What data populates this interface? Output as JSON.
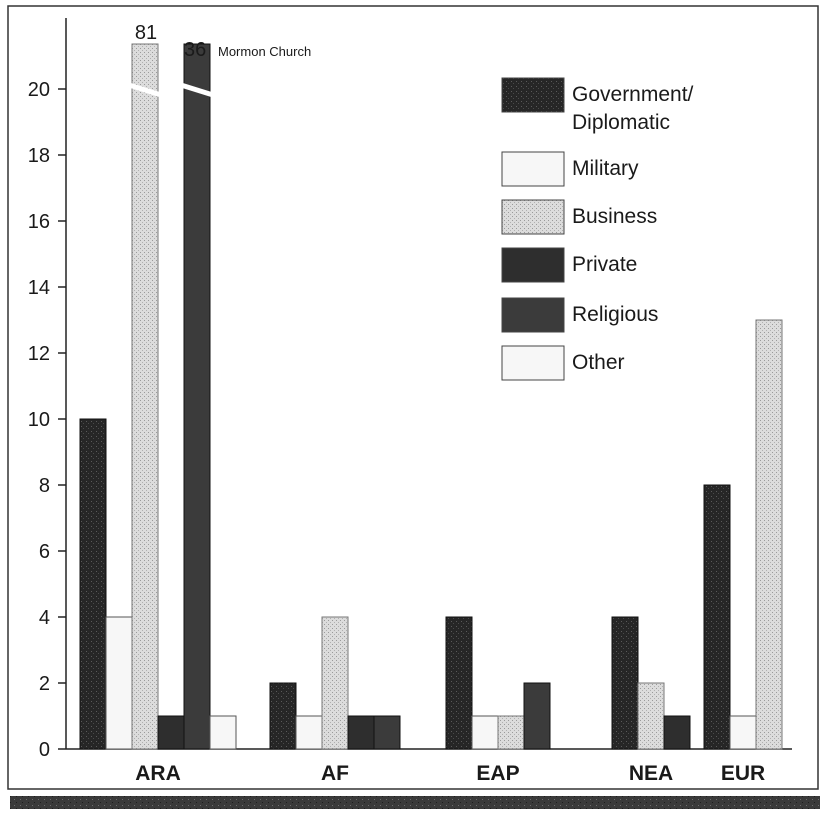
{
  "chart_data": {
    "type": "bar",
    "categories": [
      "ARA",
      "AF",
      "EAP",
      "NEA",
      "EUR"
    ],
    "series": [
      {
        "name": "Government/ Diplomatic",
        "values": [
          10,
          2,
          4,
          4,
          8
        ]
      },
      {
        "name": "Military",
        "values": [
          4,
          1,
          1,
          0,
          1
        ]
      },
      {
        "name": "Business",
        "values": [
          81,
          4,
          1,
          2,
          13
        ]
      },
      {
        "name": "Private",
        "values": [
          1,
          1,
          0,
          1,
          0
        ]
      },
      {
        "name": "Religious",
        "values": [
          36,
          1,
          2,
          0,
          0
        ]
      },
      {
        "name": "Other",
        "values": [
          1,
          0,
          0,
          0,
          0
        ]
      }
    ],
    "legend_lines": [
      [
        "Government/",
        "Diplomatic"
      ],
      [
        "Military"
      ],
      [
        "Business"
      ],
      [
        "Private"
      ],
      [
        "Religious"
      ],
      [
        "Other"
      ]
    ],
    "ylim": [
      0,
      20
    ],
    "yticks": [
      0,
      2,
      4,
      6,
      8,
      10,
      12,
      14,
      16,
      18,
      20
    ],
    "axis_break": "y-axis broken above 20 for off-scale bars",
    "annotations": {
      "business_ara_value": "81",
      "religious_ara_value": "36",
      "religious_ara_note": "Mormon Church"
    },
    "legend_position": "top-right",
    "grid": false,
    "colors": {
      "government": "#262626",
      "military": "#f7f7f7",
      "business": "#d9d9d9",
      "private": "#2e2e2e",
      "religious": "#3b3b3b",
      "other": "#f7f7f7",
      "frame_border": "#333333",
      "bottom_band": "#3a3a3a"
    }
  }
}
